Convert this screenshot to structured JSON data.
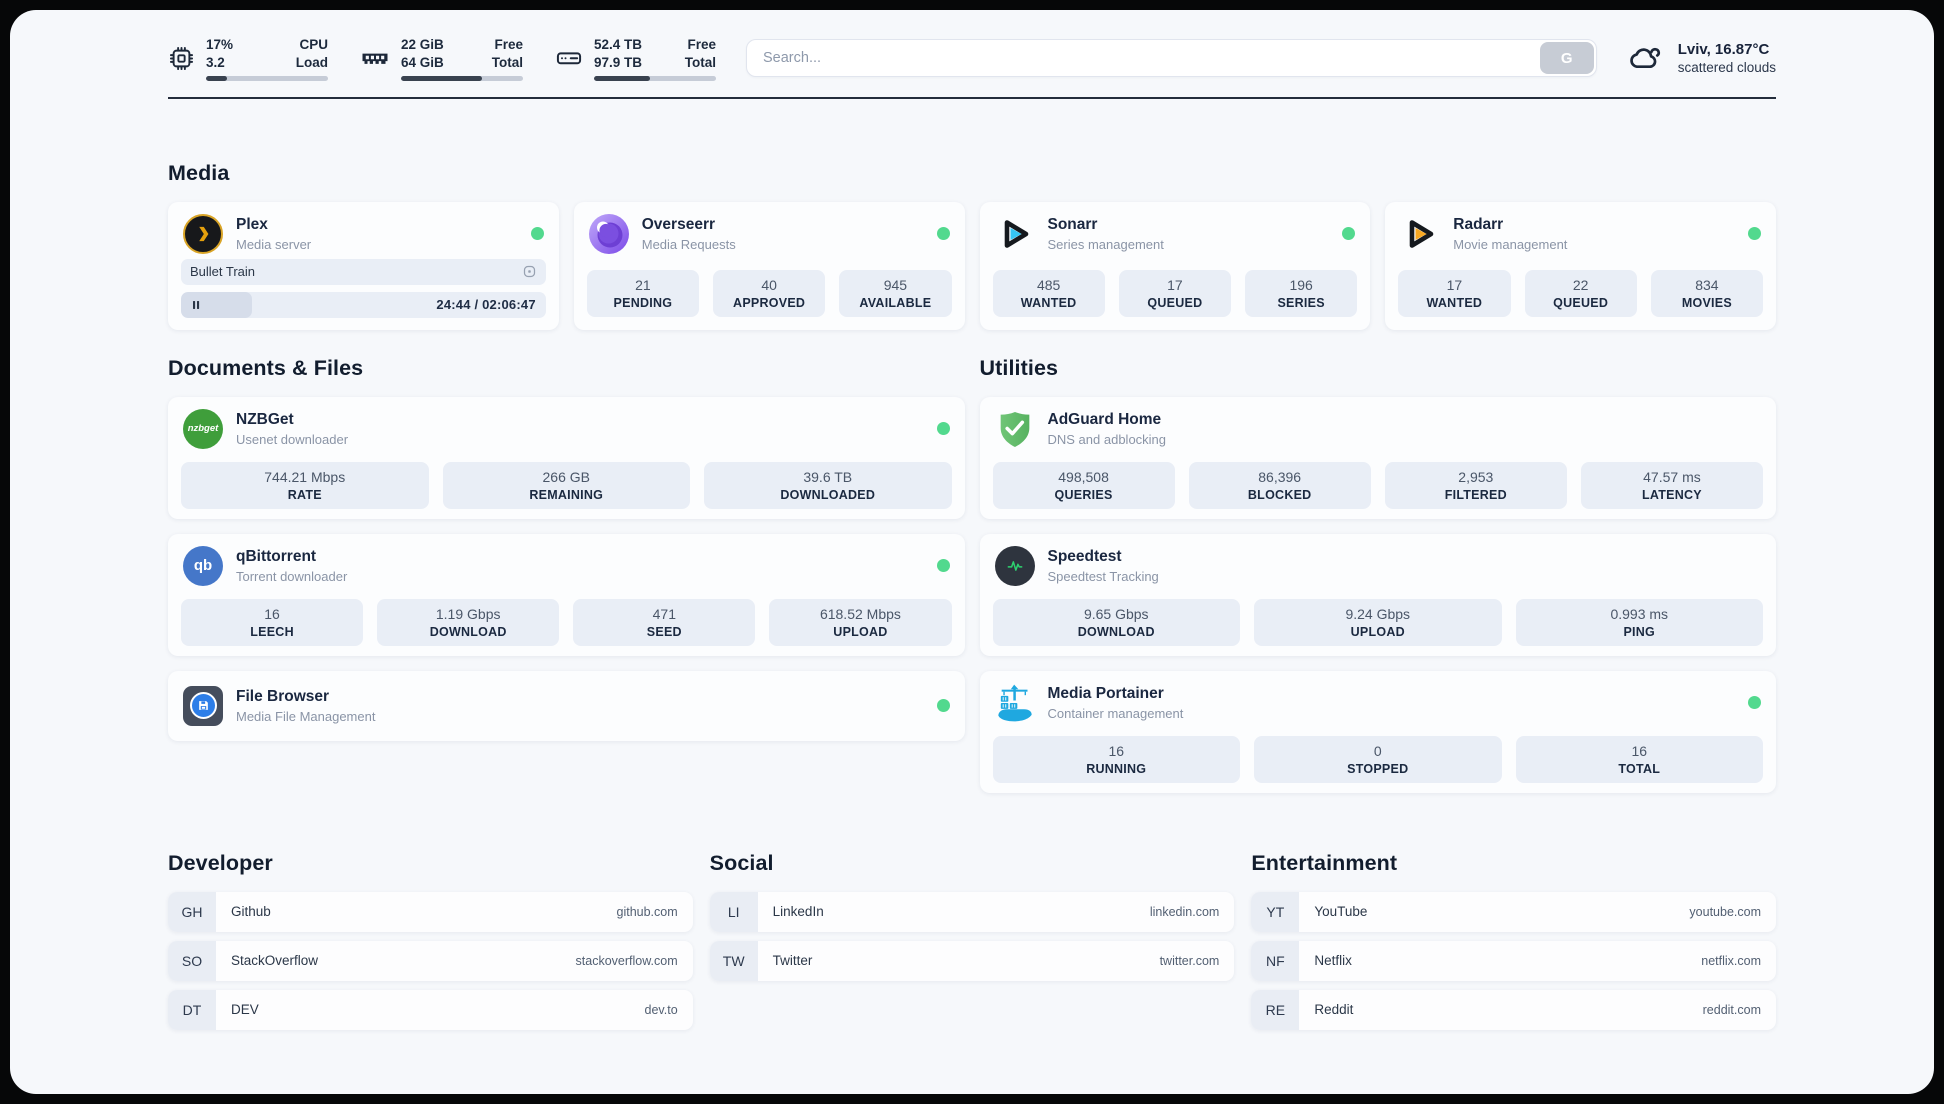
{
  "colors": {
    "status_green": "#52d98e"
  },
  "header": {
    "system_stats": [
      {
        "icon": "cpu-icon",
        "values": [
          "17%",
          "3.2"
        ],
        "labels": [
          "CPU",
          "Load"
        ],
        "progress_pct": 17
      },
      {
        "icon": "ram-icon",
        "values": [
          "22 GiB",
          "64 GiB"
        ],
        "labels": [
          "Free",
          "Total"
        ],
        "progress_pct": 66
      },
      {
        "icon": "disk-icon",
        "values": [
          "52.4 TB",
          "97.9 TB"
        ],
        "labels": [
          "Free",
          "Total"
        ],
        "progress_pct": 46
      }
    ],
    "search": {
      "placeholder": "Search...",
      "engine_button": "G"
    },
    "weather": {
      "icon": "cloud-icon",
      "line1": "Lviv, 16.87°C",
      "line2": "scattered clouds"
    }
  },
  "sections": {
    "media": {
      "title": "Media",
      "apps": [
        {
          "icon": "plex-icon",
          "name": "Plex",
          "desc": "Media server",
          "status_dot": true,
          "now_playing": {
            "title": "Bullet Train",
            "time": "24:44 / 02:06:47",
            "progress_pct": 19.5
          }
        },
        {
          "icon": "overseerr-icon",
          "name": "Overseerr",
          "desc": "Media Requests",
          "status_dot": true,
          "stats": [
            {
              "value": "21",
              "label": "PENDING"
            },
            {
              "value": "40",
              "label": "APPROVED"
            },
            {
              "value": "945",
              "label": "AVAILABLE"
            }
          ]
        },
        {
          "icon": "sonarr-icon",
          "name": "Sonarr",
          "desc": "Series management",
          "status_dot": true,
          "stats": [
            {
              "value": "485",
              "label": "WANTED"
            },
            {
              "value": "17",
              "label": "QUEUED"
            },
            {
              "value": "196",
              "label": "SERIES"
            }
          ]
        },
        {
          "icon": "radarr-icon",
          "name": "Radarr",
          "desc": "Movie management",
          "status_dot": true,
          "stats": [
            {
              "value": "17",
              "label": "WANTED"
            },
            {
              "value": "22",
              "label": "QUEUED"
            },
            {
              "value": "834",
              "label": "MOVIES"
            }
          ]
        }
      ]
    },
    "documents": {
      "title": "Documents & Files",
      "apps": [
        {
          "icon": "nzbget-icon",
          "name": "NZBGet",
          "desc": "Usenet downloader",
          "status_dot": true,
          "stats": [
            {
              "value": "744.21 Mbps",
              "label": "RATE"
            },
            {
              "value": "266 GB",
              "label": "REMAINING"
            },
            {
              "value": "39.6 TB",
              "label": "DOWNLOADED"
            }
          ]
        },
        {
          "icon": "qbittorrent-icon",
          "name": "qBittorrent",
          "desc": "Torrent downloader",
          "status_dot": true,
          "stats": [
            {
              "value": "16",
              "label": "LEECH"
            },
            {
              "value": "1.19 Gbps",
              "label": "DOWNLOAD"
            },
            {
              "value": "471",
              "label": "SEED"
            },
            {
              "value": "618.52 Mbps",
              "label": "UPLOAD"
            }
          ]
        },
        {
          "icon": "filebrowser-icon",
          "name": "File Browser",
          "desc": "Media File Management",
          "status_dot": true
        }
      ]
    },
    "utilities": {
      "title": "Utilities",
      "apps": [
        {
          "icon": "adguard-icon",
          "name": "AdGuard Home",
          "desc": "DNS and adblocking",
          "status_dot": false,
          "stats": [
            {
              "value": "498,508",
              "label": "QUERIES"
            },
            {
              "value": "86,396",
              "label": "BLOCKED"
            },
            {
              "value": "2,953",
              "label": "FILTERED"
            },
            {
              "value": "47.57 ms",
              "label": "LATENCY"
            }
          ]
        },
        {
          "icon": "speedtest-icon",
          "name": "Speedtest",
          "desc": "Speedtest Tracking",
          "status_dot": false,
          "stats": [
            {
              "value": "9.65 Gbps",
              "label": "DOWNLOAD"
            },
            {
              "value": "9.24 Gbps",
              "label": "UPLOAD"
            },
            {
              "value": "0.993 ms",
              "label": "PING"
            }
          ]
        },
        {
          "icon": "portainer-icon",
          "name": "Media Portainer",
          "desc": "Container management",
          "status_dot": true,
          "stats": [
            {
              "value": "16",
              "label": "RUNNING"
            },
            {
              "value": "0",
              "label": "STOPPED"
            },
            {
              "value": "16",
              "label": "TOTAL"
            }
          ]
        }
      ]
    }
  },
  "bookmarks": [
    {
      "title": "Developer",
      "items": [
        {
          "abbr": "GH",
          "name": "Github",
          "url": "github.com"
        },
        {
          "abbr": "SO",
          "name": "StackOverflow",
          "url": "stackoverflow.com"
        },
        {
          "abbr": "DT",
          "name": "DEV",
          "url": "dev.to"
        }
      ]
    },
    {
      "title": "Social",
      "items": [
        {
          "abbr": "LI",
          "name": "LinkedIn",
          "url": "linkedin.com"
        },
        {
          "abbr": "TW",
          "name": "Twitter",
          "url": "twitter.com"
        }
      ]
    },
    {
      "title": "Entertainment",
      "items": [
        {
          "abbr": "YT",
          "name": "YouTube",
          "url": "youtube.com"
        },
        {
          "abbr": "NF",
          "name": "Netflix",
          "url": "netflix.com"
        },
        {
          "abbr": "RE",
          "name": "Reddit",
          "url": "reddit.com"
        }
      ]
    }
  ]
}
